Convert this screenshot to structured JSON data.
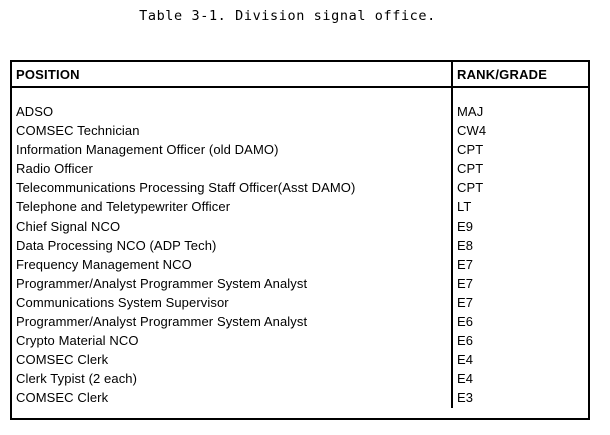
{
  "caption": "Table 3-1. Division signal office.",
  "headers": {
    "position": "POSITION",
    "rank": "RANK/GRADE"
  },
  "rows": [
    {
      "position": "ADSO",
      "rank": "MAJ"
    },
    {
      "position": "COMSEC Technician",
      "rank": "CW4"
    },
    {
      "position": "Information Management Officer (old DAMO)",
      "rank": "CPT"
    },
    {
      "position": "Radio Officer",
      "rank": "CPT"
    },
    {
      "position": "Telecommunications Processing Staff Officer(Asst DAMO)",
      "rank": "CPT"
    },
    {
      "position": "Telephone and Teletypewriter Officer",
      "rank": "LT"
    },
    {
      "position": "Chief Signal NCO",
      "rank": "E9"
    },
    {
      "position": "Data Processing NCO (ADP Tech)",
      "rank": "E8"
    },
    {
      "position": "Frequency Management NCO",
      "rank": "E7"
    },
    {
      "position": "Programmer/Analyst Programmer System Analyst",
      "rank": "E7"
    },
    {
      "position": "Communications System Supervisor",
      "rank": "E7"
    },
    {
      "position": "Programmer/Analyst Programmer System Analyst",
      "rank": "E6"
    },
    {
      "position": "Crypto Material NCO",
      "rank": "E6"
    },
    {
      "position": "COMSEC Clerk",
      "rank": "E4"
    },
    {
      "position": "Clerk Typist (2 each)",
      "rank": "E4"
    },
    {
      "position": "COMSEC Clerk",
      "rank": "E3"
    }
  ]
}
